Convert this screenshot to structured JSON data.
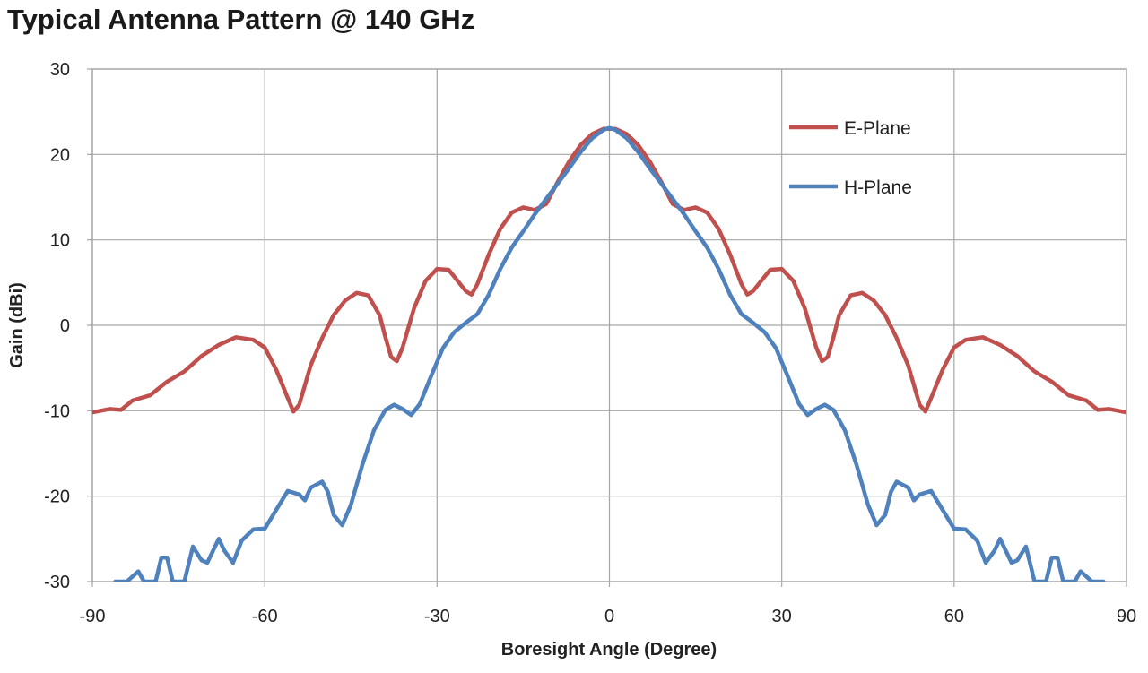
{
  "chart_data": {
    "type": "line",
    "title": "Typical Antenna Pattern @ 140 GHz",
    "xlabel": "Boresight Angle (Degree)",
    "ylabel": "Gain (dBi)",
    "xlim": [
      -90,
      90
    ],
    "ylim": [
      -30,
      30
    ],
    "xticks": [
      -90,
      -60,
      -30,
      0,
      30,
      60,
      90
    ],
    "yticks": [
      -30,
      -20,
      -10,
      0,
      10,
      20,
      30
    ],
    "xtick_labels": [
      "-90",
      "-60",
      "-30",
      "0",
      "30",
      "60",
      "90"
    ],
    "ytick_labels": [
      "-30",
      "-20",
      "-10",
      "0",
      "10",
      "20",
      "30"
    ],
    "grid": true,
    "legend_position": "top-right",
    "series": [
      {
        "name": "E-Plane",
        "color": "#c0504d",
        "points": [
          [
            -90,
            -10.2
          ],
          [
            -87,
            -9.8
          ],
          [
            -85,
            -9.9
          ],
          [
            -83,
            -8.8
          ],
          [
            -80,
            -8.2
          ],
          [
            -77,
            -6.6
          ],
          [
            -74,
            -5.4
          ],
          [
            -71,
            -3.6
          ],
          [
            -68,
            -2.3
          ],
          [
            -65,
            -1.4
          ],
          [
            -62,
            -1.7
          ],
          [
            -60,
            -2.6
          ],
          [
            -58,
            -5.2
          ],
          [
            -56,
            -8.5
          ],
          [
            -55,
            -10.1
          ],
          [
            -54,
            -9.3
          ],
          [
            -52,
            -4.7
          ],
          [
            -50,
            -1.5
          ],
          [
            -48,
            1.2
          ],
          [
            -46,
            2.9
          ],
          [
            -44,
            3.8
          ],
          [
            -42,
            3.5
          ],
          [
            -40,
            1.2
          ],
          [
            -39,
            -1.4
          ],
          [
            -38,
            -3.7
          ],
          [
            -37,
            -4.2
          ],
          [
            -36,
            -2.6
          ],
          [
            -34,
            2.0
          ],
          [
            -32,
            5.2
          ],
          [
            -30,
            6.6
          ],
          [
            -28,
            6.5
          ],
          [
            -27,
            5.7
          ],
          [
            -25,
            4.0
          ],
          [
            -24,
            3.6
          ],
          [
            -23,
            4.8
          ],
          [
            -21,
            8.3
          ],
          [
            -19,
            11.3
          ],
          [
            -17,
            13.2
          ],
          [
            -15,
            13.8
          ],
          [
            -13,
            13.5
          ],
          [
            -11,
            14.2
          ],
          [
            -9,
            16.8
          ],
          [
            -7,
            19.2
          ],
          [
            -5,
            21.1
          ],
          [
            -3,
            22.4
          ],
          [
            -1,
            23.0
          ],
          [
            0,
            23.0
          ],
          [
            1,
            23.0
          ],
          [
            3,
            22.4
          ],
          [
            5,
            21.1
          ],
          [
            7,
            19.2
          ],
          [
            9,
            16.8
          ],
          [
            11,
            14.2
          ],
          [
            13,
            13.5
          ],
          [
            15,
            13.8
          ],
          [
            17,
            13.2
          ],
          [
            19,
            11.3
          ],
          [
            21,
            8.3
          ],
          [
            23,
            4.8
          ],
          [
            24,
            3.6
          ],
          [
            25,
            4.0
          ],
          [
            27,
            5.7
          ],
          [
            28,
            6.5
          ],
          [
            30,
            6.6
          ],
          [
            32,
            5.2
          ],
          [
            34,
            2.0
          ],
          [
            36,
            -2.6
          ],
          [
            37,
            -4.2
          ],
          [
            38,
            -3.7
          ],
          [
            39,
            -1.4
          ],
          [
            40,
            1.2
          ],
          [
            42,
            3.5
          ],
          [
            44,
            3.8
          ],
          [
            46,
            2.9
          ],
          [
            48,
            1.2
          ],
          [
            50,
            -1.5
          ],
          [
            52,
            -4.7
          ],
          [
            54,
            -9.3
          ],
          [
            55,
            -10.1
          ],
          [
            56,
            -8.5
          ],
          [
            58,
            -5.2
          ],
          [
            60,
            -2.6
          ],
          [
            62,
            -1.7
          ],
          [
            65,
            -1.4
          ],
          [
            68,
            -2.3
          ],
          [
            71,
            -3.6
          ],
          [
            74,
            -5.4
          ],
          [
            77,
            -6.6
          ],
          [
            80,
            -8.2
          ],
          [
            83,
            -8.8
          ],
          [
            85,
            -9.9
          ],
          [
            87,
            -9.8
          ],
          [
            90,
            -10.2
          ]
        ]
      },
      {
        "name": "H-Plane",
        "color": "#4f81bd",
        "points": [
          [
            -86,
            -30.0
          ],
          [
            -84,
            -30.0
          ],
          [
            -82,
            -28.8
          ],
          [
            -81,
            -30.0
          ],
          [
            -79,
            -30.0
          ],
          [
            -78,
            -27.2
          ],
          [
            -77,
            -27.2
          ],
          [
            -76,
            -30.0
          ],
          [
            -74,
            -30.0
          ],
          [
            -72.5,
            -25.9
          ],
          [
            -71,
            -27.5
          ],
          [
            -70,
            -27.8
          ],
          [
            -68,
            -25.0
          ],
          [
            -67,
            -26.4
          ],
          [
            -65.5,
            -27.8
          ],
          [
            -64,
            -25.2
          ],
          [
            -62,
            -23.9
          ],
          [
            -60,
            -23.8
          ],
          [
            -58,
            -21.6
          ],
          [
            -56,
            -19.4
          ],
          [
            -54,
            -19.8
          ],
          [
            -53,
            -20.5
          ],
          [
            -52,
            -19.0
          ],
          [
            -50,
            -18.3
          ],
          [
            -49,
            -19.5
          ],
          [
            -48,
            -22.2
          ],
          [
            -46.5,
            -23.4
          ],
          [
            -45,
            -21.0
          ],
          [
            -43,
            -16.3
          ],
          [
            -41,
            -12.3
          ],
          [
            -39,
            -9.9
          ],
          [
            -37.5,
            -9.3
          ],
          [
            -36,
            -9.8
          ],
          [
            -34.5,
            -10.5
          ],
          [
            -33,
            -9.2
          ],
          [
            -31,
            -5.9
          ],
          [
            -29,
            -2.7
          ],
          [
            -27,
            -0.8
          ],
          [
            -25,
            0.3
          ],
          [
            -23,
            1.3
          ],
          [
            -21,
            3.6
          ],
          [
            -19,
            6.6
          ],
          [
            -17,
            9.1
          ],
          [
            -15,
            11.0
          ],
          [
            -13,
            13.0
          ],
          [
            -11,
            14.8
          ],
          [
            -9,
            16.6
          ],
          [
            -7,
            18.4
          ],
          [
            -5,
            20.3
          ],
          [
            -3,
            21.9
          ],
          [
            -1,
            22.9
          ],
          [
            0,
            23.1
          ],
          [
            1,
            22.9
          ],
          [
            3,
            21.9
          ],
          [
            5,
            20.3
          ],
          [
            7,
            18.4
          ],
          [
            9,
            16.6
          ],
          [
            11,
            14.8
          ],
          [
            13,
            13.0
          ],
          [
            15,
            11.0
          ],
          [
            17,
            9.1
          ],
          [
            19,
            6.6
          ],
          [
            21,
            3.6
          ],
          [
            23,
            1.3
          ],
          [
            25,
            0.3
          ],
          [
            27,
            -0.8
          ],
          [
            29,
            -2.7
          ],
          [
            31,
            -5.9
          ],
          [
            33,
            -9.2
          ],
          [
            34.5,
            -10.5
          ],
          [
            36,
            -9.8
          ],
          [
            37.5,
            -9.3
          ],
          [
            39,
            -9.9
          ],
          [
            41,
            -12.3
          ],
          [
            43,
            -16.3
          ],
          [
            45,
            -21.0
          ],
          [
            46.5,
            -23.4
          ],
          [
            48,
            -22.2
          ],
          [
            49,
            -19.5
          ],
          [
            50,
            -18.3
          ],
          [
            52,
            -19.0
          ],
          [
            53,
            -20.5
          ],
          [
            54,
            -19.8
          ],
          [
            56,
            -19.4
          ],
          [
            58,
            -21.6
          ],
          [
            60,
            -23.8
          ],
          [
            62,
            -23.9
          ],
          [
            64,
            -25.2
          ],
          [
            65.5,
            -27.8
          ],
          [
            67,
            -26.4
          ],
          [
            68,
            -25.0
          ],
          [
            70,
            -27.8
          ],
          [
            71,
            -27.5
          ],
          [
            72.5,
            -25.9
          ],
          [
            74,
            -30.0
          ],
          [
            76,
            -30.0
          ],
          [
            77,
            -27.2
          ],
          [
            78,
            -27.2
          ],
          [
            79,
            -30.0
          ],
          [
            81,
            -30.0
          ],
          [
            82,
            -28.8
          ],
          [
            84,
            -30.0
          ],
          [
            86,
            -30.0
          ]
        ]
      }
    ]
  }
}
